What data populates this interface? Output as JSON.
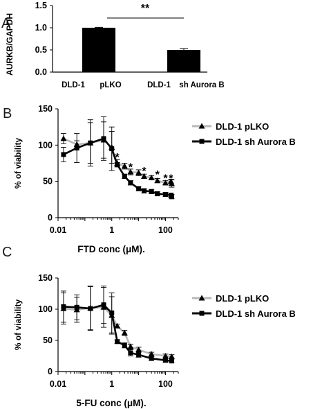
{
  "chart_data": [
    {
      "panel": "A",
      "type": "bar",
      "ylabel": "AURKB/GAPDH",
      "ylim": [
        0,
        1.5
      ],
      "yticks": [
        0,
        0.5,
        1.0,
        1.5
      ],
      "ytick_labels": [
        "0.0",
        "0.5",
        "1.0",
        "1.5"
      ],
      "categories": [
        "DLD-1  pLKO",
        "DLD-1  sh Aurora B"
      ],
      "category_parts": [
        [
          "DLD-1",
          "pLKO"
        ],
        [
          "DLD-1",
          "sh Aurora B"
        ]
      ],
      "values": [
        1.0,
        0.5
      ],
      "errors": [
        0.01,
        0.03
      ],
      "colors": [
        "#000000"
      ],
      "significance": "**"
    },
    {
      "panel": "B",
      "type": "line",
      "xlabel": "FTD conc (μM).",
      "ylabel": "% of  viability",
      "xscale": "log",
      "xlim": [
        0.01,
        300
      ],
      "xticks": [
        0.01,
        1,
        100
      ],
      "xtick_labels": [
        "0.01",
        "1",
        "100"
      ],
      "ylim": [
        0,
        150
      ],
      "yticks": [
        0,
        50,
        100,
        150
      ],
      "legend_position": "right",
      "series": [
        {
          "name": "DLD-1  pLKO",
          "color": "#b8b8b8",
          "marker": "triangle",
          "x": [
            0.016,
            0.05,
            0.16,
            0.5,
            1.0,
            1.6,
            3.0,
            5.0,
            10,
            16,
            30,
            50,
            100,
            160,
            170
          ],
          "y": [
            109,
            101,
            103,
            107,
            97,
            75,
            71,
            63,
            62,
            57,
            55,
            51,
            48,
            50,
            47
          ],
          "err": [
            7,
            5,
            32,
            25,
            22,
            5,
            4,
            4,
            4,
            3,
            3,
            3,
            3,
            3,
            5
          ]
        },
        {
          "name": "DLD-1  sh Aurora B",
          "color": "#000000",
          "marker": "square",
          "x": [
            0.016,
            0.05,
            0.16,
            0.5,
            1.0,
            1.6,
            3.0,
            5.0,
            10,
            16,
            30,
            50,
            100,
            160,
            170
          ],
          "y": [
            87,
            96,
            103,
            109,
            95,
            73,
            57,
            48,
            40,
            37,
            36,
            33,
            32,
            31,
            29
          ],
          "err": [
            10,
            20,
            28,
            30,
            30,
            3,
            3,
            3,
            3,
            3,
            3,
            3,
            3,
            3,
            3
          ]
        }
      ],
      "significance_x": [
        1.6,
        5.0,
        16,
        50,
        100,
        160
      ],
      "significance_y": [
        84,
        70,
        65,
        60,
        55,
        55
      ],
      "significance_label": "*"
    },
    {
      "panel": "C",
      "type": "line",
      "xlabel": "5-FU conc (μM).",
      "ylabel": "% of  viability",
      "xscale": "log",
      "xlim": [
        0.01,
        300
      ],
      "xticks": [
        0.01,
        1,
        100
      ],
      "xtick_labels": [
        "0.01",
        "1",
        "100"
      ],
      "ylim": [
        0,
        150
      ],
      "yticks": [
        0,
        50,
        100,
        150
      ],
      "legend_position": "right",
      "series": [
        {
          "name": "DLD-1  pLKO",
          "color": "#b8b8b8",
          "marker": "triangle",
          "x": [
            0.016,
            0.05,
            0.16,
            0.5,
            1.0,
            1.6,
            3.0,
            5.0,
            10,
            30,
            100,
            170
          ],
          "y": [
            101,
            99,
            102,
            103,
            90,
            73,
            62,
            40,
            35,
            28,
            25,
            24
          ],
          "err": [
            25,
            20,
            35,
            32,
            30,
            3,
            4,
            4,
            4,
            3,
            3,
            3
          ]
        },
        {
          "name": "DLD-1  sh Aurora B",
          "color": "#000000",
          "marker": "square",
          "x": [
            0.016,
            0.05,
            0.16,
            0.5,
            1.0,
            1.6,
            3.0,
            5.0,
            10,
            30,
            100,
            170
          ],
          "y": [
            104,
            103,
            101,
            107,
            94,
            48,
            42,
            30,
            27,
            21,
            18,
            17
          ],
          "err": [
            25,
            20,
            35,
            30,
            32,
            3,
            4,
            5,
            4,
            3,
            3,
            3
          ]
        }
      ]
    }
  ]
}
